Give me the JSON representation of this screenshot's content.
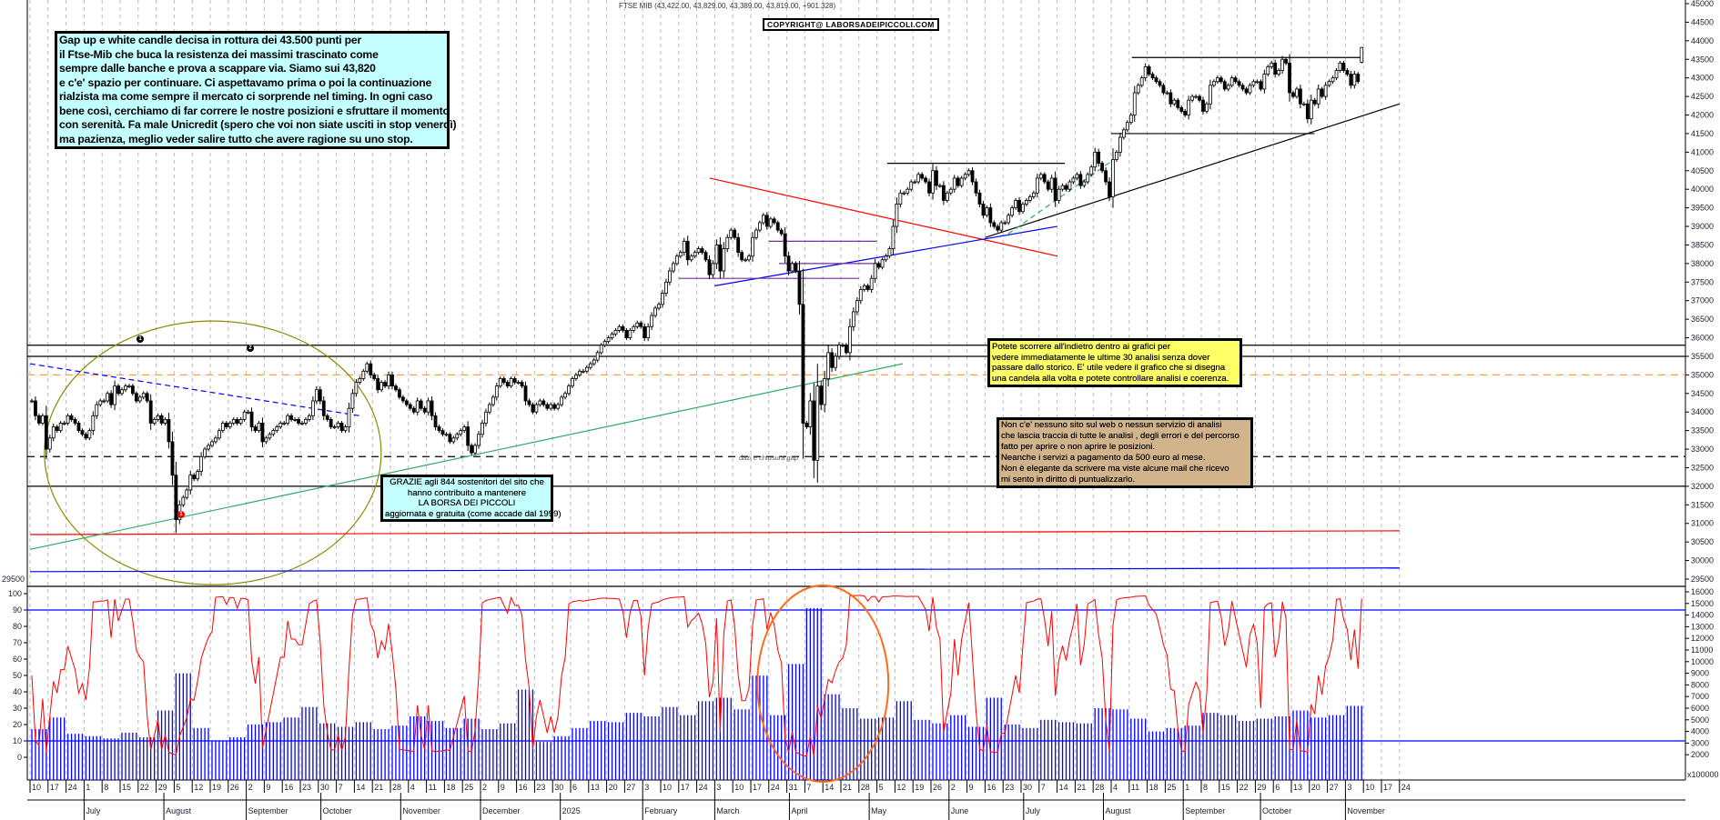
{
  "header": {
    "title": "FTSE MIB (43,422.00, 43,829.00, 43,389.00, 43,819.00, +901.328)",
    "copyright": "COPYRIGHT@ LABORSADEIPICCOLI.COM"
  },
  "notes": {
    "main": [
      "Gap up e white candle decisa in rottura dei 43.500 punti per",
      "il Ftse-Mib che buca la resistenza dei massimi trascinato come",
      "sempre dalle banche e prova a scappare via. Siamo sui 43,820",
      "e c'e' spazio per continuare. Ci aspettavamo prima o poi la continuazione",
      "rialzista ma come sempre il mercato ci sorprende nel timing. In ogni caso",
      "bene così, cerchiamo di far correre le nostre posizioni e sfruttare il momento",
      "con serenità. Fa male Unicredit (spero che voi non siate usciti in stop venerdì)",
      "ma pazienza, meglio veder salire tutto che avere ragione su uno stop."
    ],
    "yellow": [
      "Potete scorrere all'indietro dentro ai grafici per",
      "vedere immediatamente le ultime 30 analisi senza dover",
      "passare dallo storico.  E' utile vedere il grafico che si disegna",
      "una candela alla volta e potete controllare analisi e coerenza."
    ],
    "tan": [
      "Non c'e' nessuno sito sul web o nessun servizio di analisi",
      "che lascia traccia di tutte le analisi , degli errori e del percorso",
      "fatto per aprire o non aprire le posizioni.",
      "Neanche i servizi a pagamento da 500 euro al mese.",
      "Non è elegante da scrivere ma viste alcune mail che ricevo",
      "mi sento in diritto di puntualizzarlo."
    ],
    "grazie": [
      "GRAZIE  agli 844  sostenitori del sito che",
      "hanno contribuito a mantenere",
      "LA BORSA DEI PICCOLI",
      "aggiornata e gratuita (come accade dal 1999)"
    ],
    "dazi": "dazi e chiusura gap",
    "markers": [
      "1",
      "2",
      "1"
    ]
  },
  "chart_data": {
    "type": "candlestick",
    "instrument": "FTSE MIB",
    "first_week": "2024-06-10",
    "x_range": [
      "2024-06-10",
      "2025-11-24"
    ],
    "ylim": [
      29500,
      45000
    ],
    "y_tick_step": 500,
    "grid": "vertical dashed, weekly",
    "closes_by_week": [
      [
        34300,
        33900,
        33700,
        33900,
        33000
      ],
      [
        33300,
        33600,
        33500,
        33700,
        33700
      ],
      [
        33900,
        33800,
        33700,
        33500,
        33400
      ],
      [
        33300,
        33500,
        33900,
        34200,
        34300
      ],
      [
        34300,
        34500,
        34200,
        34700,
        34500
      ],
      [
        34600,
        34700,
        34700,
        34500,
        34300
      ],
      [
        34400,
        34500,
        34300,
        33700,
        33800
      ],
      [
        33900,
        33700,
        33800,
        33200,
        32300
      ],
      [
        31100,
        31500,
        31700,
        31900,
        32300
      ],
      [
        32200,
        32400,
        32800,
        33000,
        33100
      ],
      [
        33200,
        33300,
        33500,
        33700,
        33600
      ],
      [
        33700,
        33800,
        33700,
        33800,
        34000
      ],
      [
        34000,
        33600,
        33500,
        33700,
        33200
      ],
      [
        33300,
        33400,
        33500,
        33600,
        33700
      ],
      [
        33700,
        33900,
        33800,
        33800,
        33700
      ],
      [
        33700,
        33800,
        33900,
        34300,
        34600
      ],
      [
        34300,
        33900,
        33800,
        33600,
        33600
      ],
      [
        33700,
        33500,
        33600,
        34100,
        34500
      ],
      [
        34800,
        34900,
        35100,
        35300,
        35000
      ],
      [
        34900,
        34600,
        34800,
        34700,
        35000
      ],
      [
        34700,
        34600,
        34400,
        34300,
        34200
      ],
      [
        34100,
        34000,
        34300,
        34100,
        34000
      ],
      [
        34300,
        33900,
        33600,
        33500,
        33400
      ],
      [
        33400,
        33200,
        33300,
        33400,
        33500
      ],
      [
        33600,
        33100,
        32900,
        33100,
        33400
      ],
      [
        33700,
        34000,
        34200,
        34400,
        34700
      ],
      [
        34900,
        34800,
        34700,
        34900,
        34800
      ],
      [
        34800,
        34700,
        34300,
        34200,
        34000
      ],
      [
        34200,
        34300,
        34200,
        34100,
        34200
      ],
      [
        34100,
        34200,
        34400,
        34500,
        34700
      ],
      [
        34900,
        35000,
        35100,
        35100,
        35200
      ],
      [
        35300,
        35400,
        35600,
        35800,
        35900
      ],
      [
        36000,
        36100,
        36200,
        36300,
        36200
      ],
      [
        36000,
        36200,
        36300,
        36400,
        36300
      ],
      [
        36000,
        36300,
        36600,
        36800,
        36900
      ],
      [
        37200,
        37500,
        37800,
        38000,
        38200
      ],
      [
        38300,
        38600,
        38100,
        38200,
        38300
      ],
      [
        38400,
        38300,
        38100,
        37700,
        38000
      ],
      [
        38500,
        37800,
        38400,
        38700,
        38900
      ],
      [
        38700,
        38300,
        38100,
        38100,
        38200
      ],
      [
        38700,
        38900,
        39100,
        39300,
        39000
      ],
      [
        39200,
        39100,
        38900,
        38800,
        38200
      ],
      [
        37800,
        38000,
        37800,
        36900,
        33700
      ],
      [
        33600,
        34300,
        32700,
        34700,
        34200
      ],
      [
        34900,
        35600,
        35200,
        35500,
        35800
      ],
      [
        35800,
        35600,
        36300,
        36700,
        37000
      ],
      [
        37300,
        37400,
        37300,
        37600,
        38000
      ],
      [
        37900,
        38100,
        38200,
        38400,
        39000
      ],
      [
        39600,
        39900,
        39900,
        40000,
        40200
      ],
      [
        40200,
        40400,
        40300,
        40200,
        39900
      ],
      [
        40500,
        40100,
        40100,
        39700,
        39900
      ],
      [
        40000,
        40300,
        40100,
        40300,
        40400
      ],
      [
        40500,
        40200,
        39900,
        39600,
        39300
      ],
      [
        39500,
        39100,
        39000,
        38900,
        39100
      ],
      [
        39100,
        39300,
        39500,
        39700,
        39400
      ],
      [
        39600,
        39700,
        39800,
        39900,
        40300
      ],
      [
        40400,
        40200,
        40000,
        40300,
        39700
      ],
      [
        40000,
        40100,
        40000,
        40200,
        40300
      ],
      [
        40400,
        40100,
        40200,
        40400,
        40600
      ],
      [
        41000,
        40700,
        40500,
        40200,
        39800
      ],
      [
        40800,
        41000,
        41400,
        41600,
        41800
      ],
      [
        42000,
        42600,
        42800,
        43000,
        43300
      ],
      [
        43100,
        43000,
        42900,
        42800,
        42600
      ],
      [
        42600,
        42300,
        42400,
        42200,
        42100
      ],
      [
        42000,
        42400,
        42500,
        42500,
        42400
      ],
      [
        42100,
        42300,
        42800,
        42900,
        43000
      ],
      [
        42900,
        42700,
        42800,
        43000,
        42900
      ],
      [
        42800,
        42700,
        42600,
        42800,
        42900
      ],
      [
        42900,
        42700,
        43100,
        43300,
        43400
      ],
      [
        43100,
        43200,
        43500,
        43400,
        42600
      ],
      [
        42500,
        42700,
        42300,
        42300,
        41900
      ],
      [
        42400,
        42300,
        42700,
        42500,
        42800
      ],
      [
        42900,
        43000,
        43200,
        43400,
        43200
      ],
      [
        43100,
        42800,
        43100,
        42900,
        43819
      ]
    ],
    "last_candle": {
      "open": 43422.0,
      "high": 43829.0,
      "low": 43389.0,
      "close": 43819.0,
      "change": 901.328
    },
    "oscillator": {
      "ylim": [
        0,
        100
      ],
      "levels": [
        10,
        90
      ],
      "color": "#ff0000"
    },
    "volume": {
      "unit": "x100000",
      "ylim": [
        1000,
        16000
      ],
      "weekly": [
        4200,
        5200,
        3800,
        3600,
        3400,
        3900,
        3500,
        5800,
        9000,
        4300,
        3200,
        3500,
        4600,
        4800,
        5200,
        6100,
        4700,
        4400,
        4800,
        4200,
        4500,
        5300,
        4900,
        4300,
        5100,
        4200,
        4700,
        7600,
        3100,
        3600,
        4300,
        4900,
        4800,
        5600,
        5300,
        6100,
        5400,
        6600,
        6900,
        5900,
        8800,
        5400,
        9800,
        14600,
        7200,
        6000,
        5100,
        5200,
        6600,
        5000,
        4700,
        5400,
        4400,
        6900,
        4600,
        4300,
        5000,
        4800,
        4700,
        6000,
        5900,
        5100,
        4000,
        4300,
        4500,
        5600,
        5400,
        4900,
        5100,
        5300,
        5800,
        5200,
        5400,
        6200
      ],
      "color": "#0000ff"
    },
    "levels": [
      {
        "price": 35800,
        "color": "#000000",
        "style": "solid"
      },
      {
        "price": 35500,
        "color": "#000000",
        "style": "solid"
      },
      {
        "price": 32800,
        "color": "#000000",
        "style": "dashed"
      },
      {
        "price": 32000,
        "color": "#000000",
        "style": "solid"
      },
      {
        "price": 35000,
        "color": "#ffa040",
        "style": "dashed"
      }
    ],
    "trendlines": [
      {
        "from": [
          "2024-06-10",
          30700
        ],
        "to": [
          "2025-11-24",
          30800
        ],
        "color": "#ff0000"
      },
      {
        "from": [
          "2024-06-10",
          29700
        ],
        "to": [
          "2025-11-24",
          29800
        ],
        "color": "#0000ff"
      },
      {
        "from": [
          "2024-06-10",
          35300
        ],
        "to": [
          "2024-10-16",
          33900
        ],
        "color": "#0000ff",
        "dash": true
      },
      {
        "from": [
          "2024-06-10",
          30300
        ],
        "to": [
          "2025-05-15",
          35300
        ],
        "color": "#2eaa66"
      },
      {
        "from": [
          "2025-03-01",
          40300
        ],
        "to": [
          "2025-07-14",
          38200
        ],
        "color": "#ff0000"
      },
      {
        "from": [
          "2025-03-03",
          37400
        ],
        "to": [
          "2025-07-14",
          39000
        ],
        "color": "#0000ff"
      },
      {
        "from": [
          "2025-03-24",
          38600
        ],
        "to": [
          "2025-05-05",
          38600
        ],
        "color": "#7030a0"
      },
      {
        "from": [
          "2025-03-28",
          38000
        ],
        "to": [
          "2025-05-05",
          38000
        ],
        "color": "#7030a0"
      },
      {
        "from": [
          "2025-02-17",
          37600
        ],
        "to": [
          "2025-04-28",
          37600
        ],
        "color": "#7030a0"
      },
      {
        "from": [
          "2025-05-09",
          40700
        ],
        "to": [
          "2025-07-17",
          40700
        ],
        "color": "#000000"
      },
      {
        "from": [
          "2025-08-04",
          41500
        ],
        "to": [
          "2025-10-22",
          41500
        ],
        "color": "#000000"
      },
      {
        "from": [
          "2025-08-12",
          43550
        ],
        "to": [
          "2025-11-10",
          43550
        ],
        "color": "#000000"
      },
      {
        "from": [
          "2025-06-16",
          38700
        ],
        "to": [
          "2025-11-24",
          42300
        ],
        "color": "#000000"
      },
      {
        "from": [
          "2025-06-25",
          38800
        ],
        "to": [
          "2025-08-05",
          40800
        ],
        "color": "#2eaa66",
        "dash": true
      }
    ],
    "month_labels": [
      {
        "label": "July",
        "date": "2024-07-01"
      },
      {
        "label": "August",
        "date": "2024-08-01"
      },
      {
        "label": "September",
        "date": "2024-09-02"
      },
      {
        "label": "October",
        "date": "2024-10-01"
      },
      {
        "label": "November",
        "date": "2024-11-01"
      },
      {
        "label": "December",
        "date": "2024-12-02"
      },
      {
        "label": "2025",
        "date": "2025-01-02"
      },
      {
        "label": "February",
        "date": "2025-02-03"
      },
      {
        "label": "March",
        "date": "2025-03-03"
      },
      {
        "label": "April",
        "date": "2025-04-01"
      },
      {
        "label": "May",
        "date": "2025-05-02"
      },
      {
        "label": "June",
        "date": "2025-06-02"
      },
      {
        "label": "July",
        "date": "2025-07-01"
      },
      {
        "label": "August",
        "date": "2025-08-01"
      },
      {
        "label": "September",
        "date": "2025-09-01"
      },
      {
        "label": "October",
        "date": "2025-10-01"
      },
      {
        "label": "November",
        "date": "2025-11-03"
      }
    ]
  }
}
